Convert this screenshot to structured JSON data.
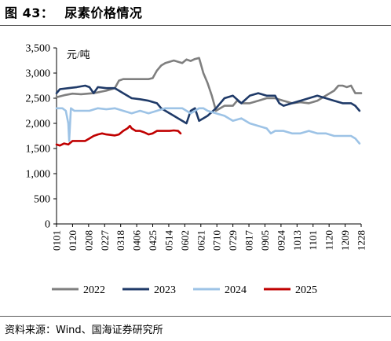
{
  "figure": {
    "label": "图 43：",
    "title": "尿素价格情况",
    "source": "资料来源：Wind、国海证券研究所"
  },
  "chart_data": {
    "type": "line",
    "title": "尿素价格情况",
    "ylabel": "元/吨",
    "xlabel": "",
    "ylim": [
      0,
      3500
    ],
    "yticks": [
      "0",
      "500",
      "1,000",
      "1,500",
      "2,000",
      "2,500",
      "3,000",
      "3,500"
    ],
    "xticks": [
      "0101",
      "0120",
      "0208",
      "0227",
      "0318",
      "0406",
      "0425",
      "0514",
      "0602",
      "0621",
      "0710",
      "0729",
      "0817",
      "0905",
      "0924",
      "1013",
      "1101",
      "1120",
      "1209",
      "1228"
    ],
    "grid": false,
    "legend_position": "bottom",
    "x_unit": "day_of_year",
    "series": [
      {
        "name": "2022",
        "color": "#7f7f7f",
        "points": [
          [
            1,
            2520
          ],
          [
            10,
            2560
          ],
          [
            20,
            2590
          ],
          [
            30,
            2580
          ],
          [
            45,
            2600
          ],
          [
            60,
            2650
          ],
          [
            70,
            2700
          ],
          [
            75,
            2850
          ],
          [
            80,
            2880
          ],
          [
            90,
            2880
          ],
          [
            100,
            2880
          ],
          [
            110,
            2880
          ],
          [
            115,
            2900
          ],
          [
            120,
            3050
          ],
          [
            125,
            3150
          ],
          [
            130,
            3200
          ],
          [
            140,
            3250
          ],
          [
            150,
            3200
          ],
          [
            155,
            3270
          ],
          [
            160,
            3240
          ],
          [
            165,
            3280
          ],
          [
            170,
            3300
          ],
          [
            175,
            3000
          ],
          [
            180,
            2800
          ],
          [
            185,
            2550
          ],
          [
            190,
            2250
          ],
          [
            195,
            2300
          ],
          [
            200,
            2350
          ],
          [
            210,
            2350
          ],
          [
            215,
            2450
          ],
          [
            220,
            2400
          ],
          [
            230,
            2400
          ],
          [
            240,
            2450
          ],
          [
            250,
            2500
          ],
          [
            260,
            2500
          ],
          [
            270,
            2450
          ],
          [
            280,
            2400
          ],
          [
            290,
            2420
          ],
          [
            300,
            2400
          ],
          [
            310,
            2450
          ],
          [
            320,
            2550
          ],
          [
            330,
            2650
          ],
          [
            335,
            2750
          ],
          [
            340,
            2750
          ],
          [
            345,
            2720
          ],
          [
            350,
            2750
          ],
          [
            355,
            2600
          ],
          [
            362,
            2600
          ]
        ]
      },
      {
        "name": "2023",
        "color": "#1f3a68",
        "points": [
          [
            1,
            2600
          ],
          [
            5,
            2680
          ],
          [
            15,
            2700
          ],
          [
            25,
            2720
          ],
          [
            35,
            2750
          ],
          [
            40,
            2720
          ],
          [
            45,
            2600
          ],
          [
            50,
            2720
          ],
          [
            60,
            2700
          ],
          [
            70,
            2700
          ],
          [
            75,
            2650
          ],
          [
            80,
            2600
          ],
          [
            90,
            2500
          ],
          [
            100,
            2480
          ],
          [
            110,
            2450
          ],
          [
            120,
            2400
          ],
          [
            125,
            2300
          ],
          [
            130,
            2250
          ],
          [
            140,
            2150
          ],
          [
            145,
            2100
          ],
          [
            150,
            2050
          ],
          [
            155,
            2000
          ],
          [
            160,
            2250
          ],
          [
            165,
            2300
          ],
          [
            170,
            2050
          ],
          [
            175,
            2100
          ],
          [
            180,
            2150
          ],
          [
            190,
            2300
          ],
          [
            200,
            2500
          ],
          [
            210,
            2550
          ],
          [
            220,
            2400
          ],
          [
            230,
            2550
          ],
          [
            240,
            2600
          ],
          [
            250,
            2550
          ],
          [
            260,
            2550
          ],
          [
            265,
            2400
          ],
          [
            270,
            2350
          ],
          [
            280,
            2400
          ],
          [
            290,
            2450
          ],
          [
            300,
            2500
          ],
          [
            310,
            2550
          ],
          [
            320,
            2500
          ],
          [
            330,
            2450
          ],
          [
            340,
            2400
          ],
          [
            350,
            2400
          ],
          [
            355,
            2350
          ],
          [
            360,
            2250
          ]
        ]
      },
      {
        "name": "2024",
        "color": "#9dc3e6",
        "points": [
          [
            1,
            2300
          ],
          [
            8,
            2300
          ],
          [
            12,
            2250
          ],
          [
            15,
            2000
          ],
          [
            16,
            1650
          ],
          [
            18,
            2300
          ],
          [
            22,
            2250
          ],
          [
            30,
            2250
          ],
          [
            40,
            2250
          ],
          [
            50,
            2300
          ],
          [
            60,
            2280
          ],
          [
            70,
            2300
          ],
          [
            80,
            2250
          ],
          [
            90,
            2200
          ],
          [
            100,
            2250
          ],
          [
            110,
            2200
          ],
          [
            120,
            2250
          ],
          [
            130,
            2300
          ],
          [
            140,
            2300
          ],
          [
            150,
            2300
          ],
          [
            155,
            2250
          ],
          [
            160,
            2200
          ],
          [
            165,
            2250
          ],
          [
            170,
            2300
          ],
          [
            175,
            2300
          ],
          [
            180,
            2250
          ],
          [
            190,
            2200
          ],
          [
            200,
            2150
          ],
          [
            210,
            2050
          ],
          [
            220,
            2100
          ],
          [
            230,
            2000
          ],
          [
            240,
            1950
          ],
          [
            250,
            1900
          ],
          [
            255,
            1800
          ],
          [
            260,
            1850
          ],
          [
            270,
            1850
          ],
          [
            280,
            1800
          ],
          [
            290,
            1800
          ],
          [
            300,
            1850
          ],
          [
            310,
            1800
          ],
          [
            320,
            1800
          ],
          [
            330,
            1750
          ],
          [
            340,
            1750
          ],
          [
            350,
            1750
          ],
          [
            355,
            1700
          ],
          [
            360,
            1600
          ]
        ]
      },
      {
        "name": "2025",
        "color": "#c00000",
        "points": [
          [
            1,
            1580
          ],
          [
            5,
            1560
          ],
          [
            10,
            1600
          ],
          [
            15,
            1580
          ],
          [
            20,
            1650
          ],
          [
            25,
            1650
          ],
          [
            35,
            1650
          ],
          [
            40,
            1700
          ],
          [
            45,
            1750
          ],
          [
            50,
            1780
          ],
          [
            55,
            1800
          ],
          [
            60,
            1780
          ],
          [
            65,
            1770
          ],
          [
            70,
            1760
          ],
          [
            75,
            1780
          ],
          [
            80,
            1850
          ],
          [
            85,
            1900
          ],
          [
            88,
            1950
          ],
          [
            90,
            1900
          ],
          [
            95,
            1850
          ],
          [
            100,
            1850
          ],
          [
            105,
            1820
          ],
          [
            110,
            1780
          ],
          [
            115,
            1800
          ],
          [
            120,
            1850
          ],
          [
            125,
            1850
          ],
          [
            130,
            1850
          ],
          [
            135,
            1850
          ],
          [
            140,
            1860
          ],
          [
            145,
            1850
          ],
          [
            148,
            1800
          ]
        ]
      }
    ]
  }
}
